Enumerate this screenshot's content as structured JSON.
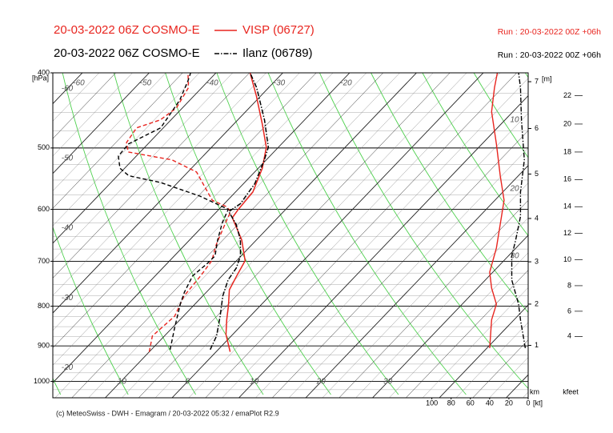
{
  "chart_data": {
    "type": "emagram",
    "ylabel": "[hPa]",
    "log": true,
    "ylim": [
      400,
      1050
    ],
    "yticks": [
      400,
      500,
      600,
      700,
      800,
      900,
      1000
    ],
    "xticks": [
      -60,
      -50,
      -40,
      -30,
      -20,
      -10,
      0,
      10,
      20,
      30
    ],
    "series": [
      {
        "model": "20-03-2022 06Z COSMO-E",
        "name": "VISP (06727)",
        "run": "Run : 20-03-2022 00Z +06h",
        "color": "#e8251f",
        "line_style": "solid",
        "temperature": {
          "pressure": [
            916,
            870,
            833,
            798,
            762,
            731,
            699,
            657,
            615,
            600,
            570,
            531,
            499,
            466,
            428,
            400
          ],
          "values": [
            2.1,
            -1.0,
            -3.0,
            -4.8,
            -6.9,
            -7.8,
            -8.7,
            -12.2,
            -16.8,
            -17.1,
            -17.4,
            -19.4,
            -21.8,
            -25.7,
            -30.7,
            -34.9
          ]
        },
        "dewpoint": {
          "pressure": [
            916,
            874,
            824,
            776,
            731,
            699,
            665,
            619,
            604,
            595,
            584,
            537,
            518,
            506,
            492,
            471,
            460,
            444,
            418,
            400
          ],
          "values": [
            -10.0,
            -11.8,
            -11.3,
            -12.8,
            -13.2,
            -13.7,
            -15.4,
            -17.3,
            -17.9,
            -19.3,
            -22.3,
            -28.7,
            -34.1,
            -41.8,
            -43.4,
            -44.0,
            -41.6,
            -40.9,
            -42.0,
            -44.2
          ]
        },
        "wind_speed": {
          "pressure": [
            906,
            833,
            795,
            758,
            723,
            673,
            627,
            584,
            543,
            494,
            449,
            418,
            400
          ],
          "values": [
            40,
            38,
            33,
            38,
            40,
            33,
            29,
            25,
            29,
            33,
            38,
            35,
            32
          ]
        }
      },
      {
        "model": "20-03-2022 06Z COSMO-E",
        "name": "Ilanz (06789)",
        "run": "Run : 20-03-2022 00Z +06h",
        "color": "#000000",
        "line_style": "dashdot",
        "temperature": {
          "pressure": [
            910,
            874,
            824,
            776,
            740,
            714,
            689,
            657,
            627,
            604,
            590,
            556,
            518,
            499,
            460,
            418,
            400
          ],
          "values": [
            -1.2,
            -2.2,
            -4.5,
            -7.0,
            -8.5,
            -9.0,
            -10.1,
            -12.4,
            -15.3,
            -18.2,
            -17.6,
            -18.3,
            -20.3,
            -21.5,
            -26.0,
            -31.8,
            -34.9
          ]
        },
        "dewpoint": {
          "pressure": [
            910,
            854,
            795,
            767,
            731,
            706,
            689,
            657,
            624,
            600,
            577,
            554,
            543,
            531,
            512,
            494,
            471,
            434,
            409,
            400
          ],
          "values": [
            -7.2,
            -9.6,
            -12.2,
            -13.3,
            -14.4,
            -14.0,
            -13.9,
            -15.8,
            -17.6,
            -18.6,
            -24.7,
            -32.6,
            -38.3,
            -40.7,
            -42.7,
            -42.9,
            -40.4,
            -41.5,
            -43.1,
            -43.8
          ]
        },
        "wind_speed": {
          "pressure": [
            906,
            833,
            795,
            740,
            689,
            657,
            613,
            570,
            518,
            460,
            418,
            400
          ],
          "values": [
            3,
            8,
            10,
            17,
            17,
            13,
            8,
            8,
            4,
            7,
            8,
            10
          ]
        }
      }
    ],
    "wind_xlabel": "[kt]",
    "wind_xlim": [
      108,
      0
    ],
    "wind_xticks": [
      100,
      80,
      60,
      40,
      20,
      0
    ],
    "km_label": "[m]",
    "km_unit": "km",
    "km_ticks": [
      1,
      2,
      3,
      4,
      5,
      6,
      7
    ],
    "kfeet_unit": "kfeet",
    "kfeet_ticks": [
      4,
      6,
      8,
      10,
      12,
      14,
      16,
      18,
      20,
      22
    ],
    "annotations": [
      "10",
      "20",
      "30"
    ],
    "footer": "(c) MeteoSwiss - DWH - Emagram / 20-03-2022  05:32 / emaPlot R2.9"
  }
}
